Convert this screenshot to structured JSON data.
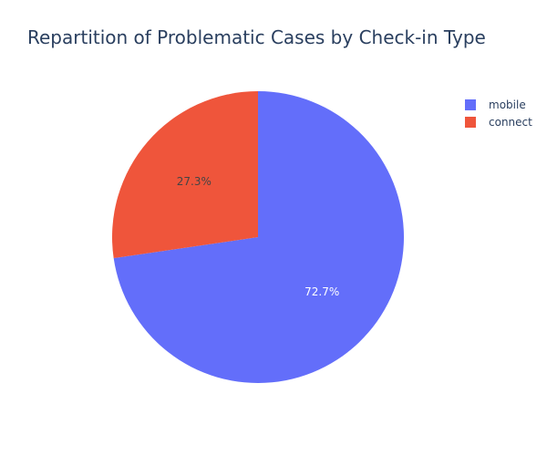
{
  "chart_data": {
    "type": "pie",
    "title": "Repartition of Problematic Cases by Check-in Type",
    "legend_position": "top-right",
    "slices": [
      {
        "label": "mobile",
        "percent": 72.7,
        "percent_label": "72.7%",
        "color": "#636efa",
        "text_color": "#ffffff"
      },
      {
        "label": "connect",
        "percent": 27.3,
        "percent_label": "27.3%",
        "color": "#ef553b",
        "text_color": "#444444"
      }
    ]
  }
}
